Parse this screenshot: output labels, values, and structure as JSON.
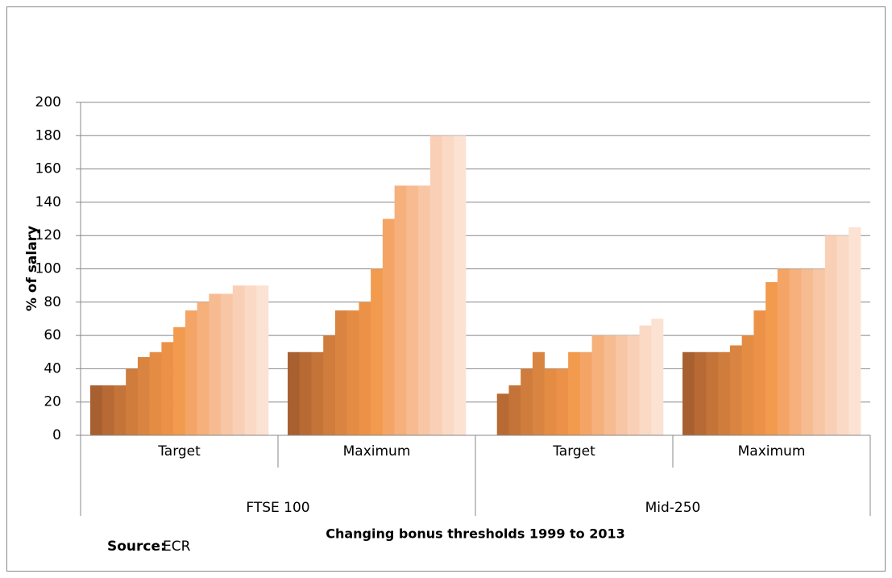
{
  "chart_data": {
    "type": "bar",
    "categories": [
      "Target",
      "Maximum",
      "Target",
      "Maximum"
    ],
    "group_labels": [
      "FTSE 100",
      "Mid-250"
    ],
    "y_label": "% of salary",
    "x_label": "Changing bonus thresholds 1999 to 2013",
    "source": {
      "label": "Source:",
      "text": "ECR"
    },
    "ylim": [
      0,
      200
    ],
    "yticks": [
      0,
      20,
      40,
      60,
      80,
      100,
      120,
      140,
      160,
      180,
      200
    ],
    "grid": true,
    "series": [
      {
        "color": "#a86030",
        "values": [
          30,
          50,
          null,
          50
        ]
      },
      {
        "color": "#b86a34",
        "values": [
          30,
          50,
          25,
          50
        ]
      },
      {
        "color": "#c47438",
        "values": [
          30,
          50,
          30,
          50
        ]
      },
      {
        "color": "#cf7c3c",
        "values": [
          40,
          60,
          40,
          50
        ]
      },
      {
        "color": "#d98440",
        "values": [
          47,
          75,
          50,
          54
        ]
      },
      {
        "color": "#e48c44",
        "values": [
          50,
          75,
          40,
          60
        ]
      },
      {
        "color": "#ec9248",
        "values": [
          56,
          80,
          40,
          75
        ]
      },
      {
        "color": "#f29a4e",
        "values": [
          65,
          100,
          50,
          92
        ]
      },
      {
        "color": "#f4a566",
        "values": [
          75,
          130,
          50,
          100
        ]
      },
      {
        "color": "#f5b07c",
        "values": [
          80,
          150,
          60,
          100
        ]
      },
      {
        "color": "#f6bb91",
        "values": [
          85,
          150,
          60,
          100
        ]
      },
      {
        "color": "#f8c6a5",
        "values": [
          85,
          150,
          60,
          100
        ]
      },
      {
        "color": "#f9d0b6",
        "values": [
          90,
          180,
          60,
          120
        ]
      },
      {
        "color": "#fad9c5",
        "values": [
          90,
          180,
          66,
          120
        ]
      },
      {
        "color": "#fbe2d3",
        "values": [
          90,
          180,
          70,
          125
        ]
      }
    ]
  }
}
